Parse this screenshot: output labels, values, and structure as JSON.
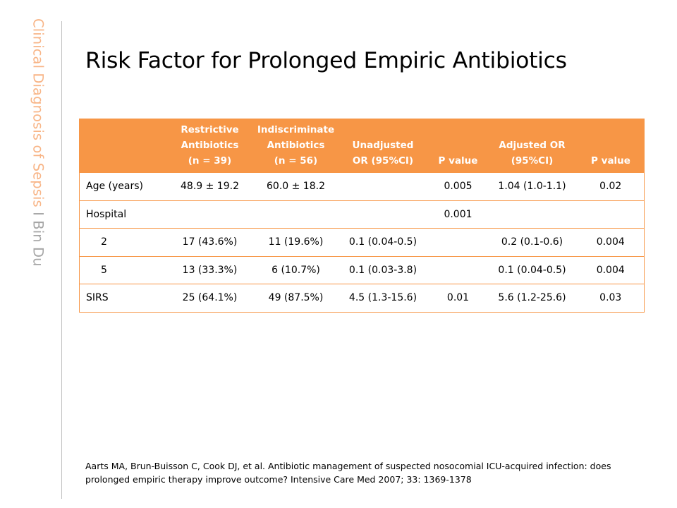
{
  "sidebar": {
    "title": "Clinical Diagnosis of Sepsis",
    "author": "I Bin Du"
  },
  "title": "Risk Factor for Prolonged Empiric Antibiotics",
  "table": {
    "header": {
      "col0": "",
      "col1_line1": "Restrictive",
      "col1_line2": "Antibiotics",
      "col1_line3": "(n = 39)",
      "col2_line1": "Indiscriminate",
      "col2_line2": "Antibiotics",
      "col2_line3": "(n = 56)",
      "col3_line1": "Unadjusted",
      "col3_line2": "OR (95%CI)",
      "col4": "P value",
      "col5_line1": "Adjusted OR",
      "col5_line2": "(95%CI)",
      "col6": "P value"
    },
    "rows": [
      [
        "Age (years)",
        "48.9 ± 19.2",
        "60.0 ± 18.2",
        "",
        "0.005",
        "1.04 (1.0-1.1)",
        "0.02"
      ],
      [
        "Hospital",
        "",
        "",
        "",
        "0.001",
        "",
        ""
      ],
      [
        "2",
        "17 (43.6%)",
        "11 (19.6%)",
        "0.1 (0.04-0.5)",
        "",
        "0.2 (0.1-0.6)",
        "0.004"
      ],
      [
        "5",
        "13 (33.3%)",
        "6 (10.7%)",
        "0.1 (0.03-3.8)",
        "",
        "0.1 (0.04-0.5)",
        "0.004"
      ],
      [
        "SIRS",
        "25 (64.1%)",
        "49 (87.5%)",
        "4.5 (1.3-15.6)",
        "0.01",
        "5.6 (1.2-25.6)",
        "0.03"
      ]
    ]
  },
  "citation": "Aarts MA, Brun-Buisson C, Cook DJ, et al. Antibiotic management of suspected nosocomial ICU-acquired infection: does prolonged empiric therapy improve outcome? Intensive Care Med 2007; 33: 1369-1378",
  "colors": {
    "accent": "#f79646",
    "sidebar_title": "#f8b587",
    "sidebar_author": "#a6a6a6"
  }
}
